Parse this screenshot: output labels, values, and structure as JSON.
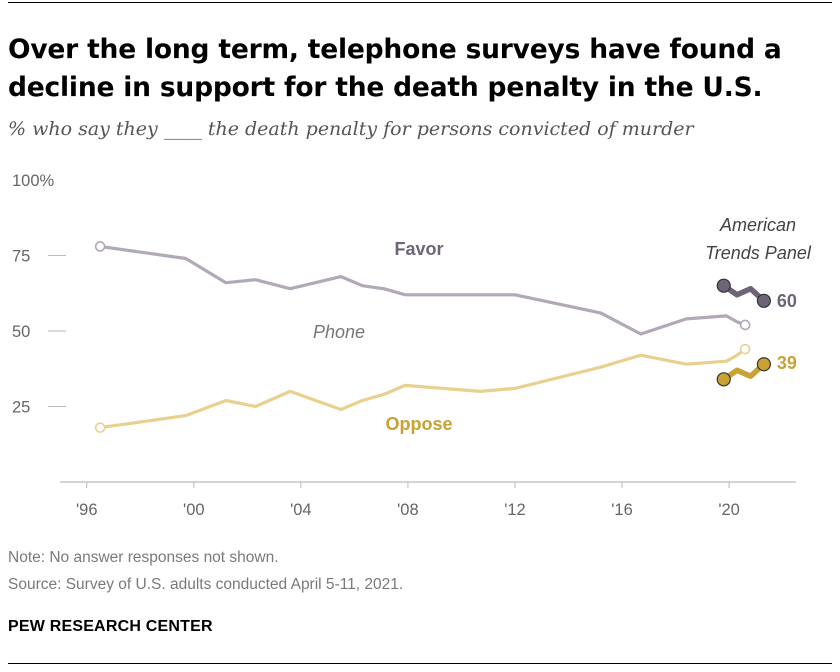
{
  "header": {
    "title": "Over the long term, telephone surveys have found a decline in support for the death penalty in the U.S.",
    "subtitle": "% who say they ____ the death penalty for persons convicted of murder"
  },
  "footer": {
    "note": "Note: No answer responses not shown.",
    "source": "Source: Survey of U.S. adults conducted April 5-11, 2021.",
    "brand": "PEW RESEARCH CENTER"
  },
  "colors": {
    "favor_phone": "#b2a9b8",
    "favor_panel": "#6e6478",
    "oppose_phone": "#e8d08f",
    "oppose_panel": "#c9a233",
    "axis": "#bbbbbb",
    "tick_text": "#666666"
  },
  "chart_data": {
    "type": "line",
    "xlim": [
      1995,
      2022.5
    ],
    "ylim": [
      0,
      100
    ],
    "yticks": [
      25,
      50,
      75,
      100
    ],
    "ytick_labels": [
      "25",
      "50",
      "75",
      "100%"
    ],
    "xticks": [
      1996,
      2000,
      2004,
      2008,
      2012,
      2016,
      2020
    ],
    "xtick_labels": [
      "'96",
      "'00",
      "'04",
      "'08",
      "'12",
      "'16",
      "'20"
    ],
    "grid": false,
    "series": [
      {
        "name": "Favor",
        "mode": "Phone",
        "x": [
          1996.5,
          1999.7,
          2001.2,
          2002.3,
          2003.6,
          2005.5,
          2006.3,
          2007.1,
          2007.9,
          2012.0,
          2015.2,
          2016.7,
          2018.4,
          2019.9,
          2020.3,
          2020.6
        ],
        "y": [
          78,
          74,
          66,
          67,
          64,
          68,
          65,
          64,
          62,
          62,
          56,
          49,
          54,
          55,
          53,
          52
        ]
      },
      {
        "name": "Oppose",
        "mode": "Phone",
        "x": [
          1996.5,
          1999.7,
          2001.2,
          2002.3,
          2003.6,
          2005.5,
          2006.3,
          2007.1,
          2007.9,
          2010.7,
          2012.0,
          2015.2,
          2016.7,
          2018.4,
          2019.9,
          2020.3,
          2020.6
        ],
        "y": [
          18,
          22,
          27,
          25,
          30,
          24,
          27,
          29,
          32,
          30,
          31,
          38,
          42,
          39,
          40,
          42,
          44
        ]
      },
      {
        "name": "Favor",
        "mode": "American Trends Panel",
        "x": [
          2019.8,
          2020.3,
          2020.8,
          2021.3
        ],
        "y": [
          65,
          62,
          64,
          60
        ],
        "end_label": "60"
      },
      {
        "name": "Oppose",
        "mode": "American Trends Panel",
        "x": [
          2019.8,
          2020.3,
          2020.8,
          2021.3
        ],
        "y": [
          34,
          37,
          35,
          39
        ],
        "end_label": "39"
      }
    ],
    "annotations": {
      "favor": "Favor",
      "oppose": "Oppose",
      "phone": "Phone",
      "panel_line1": "American",
      "panel_line2": "Trends Panel"
    }
  }
}
